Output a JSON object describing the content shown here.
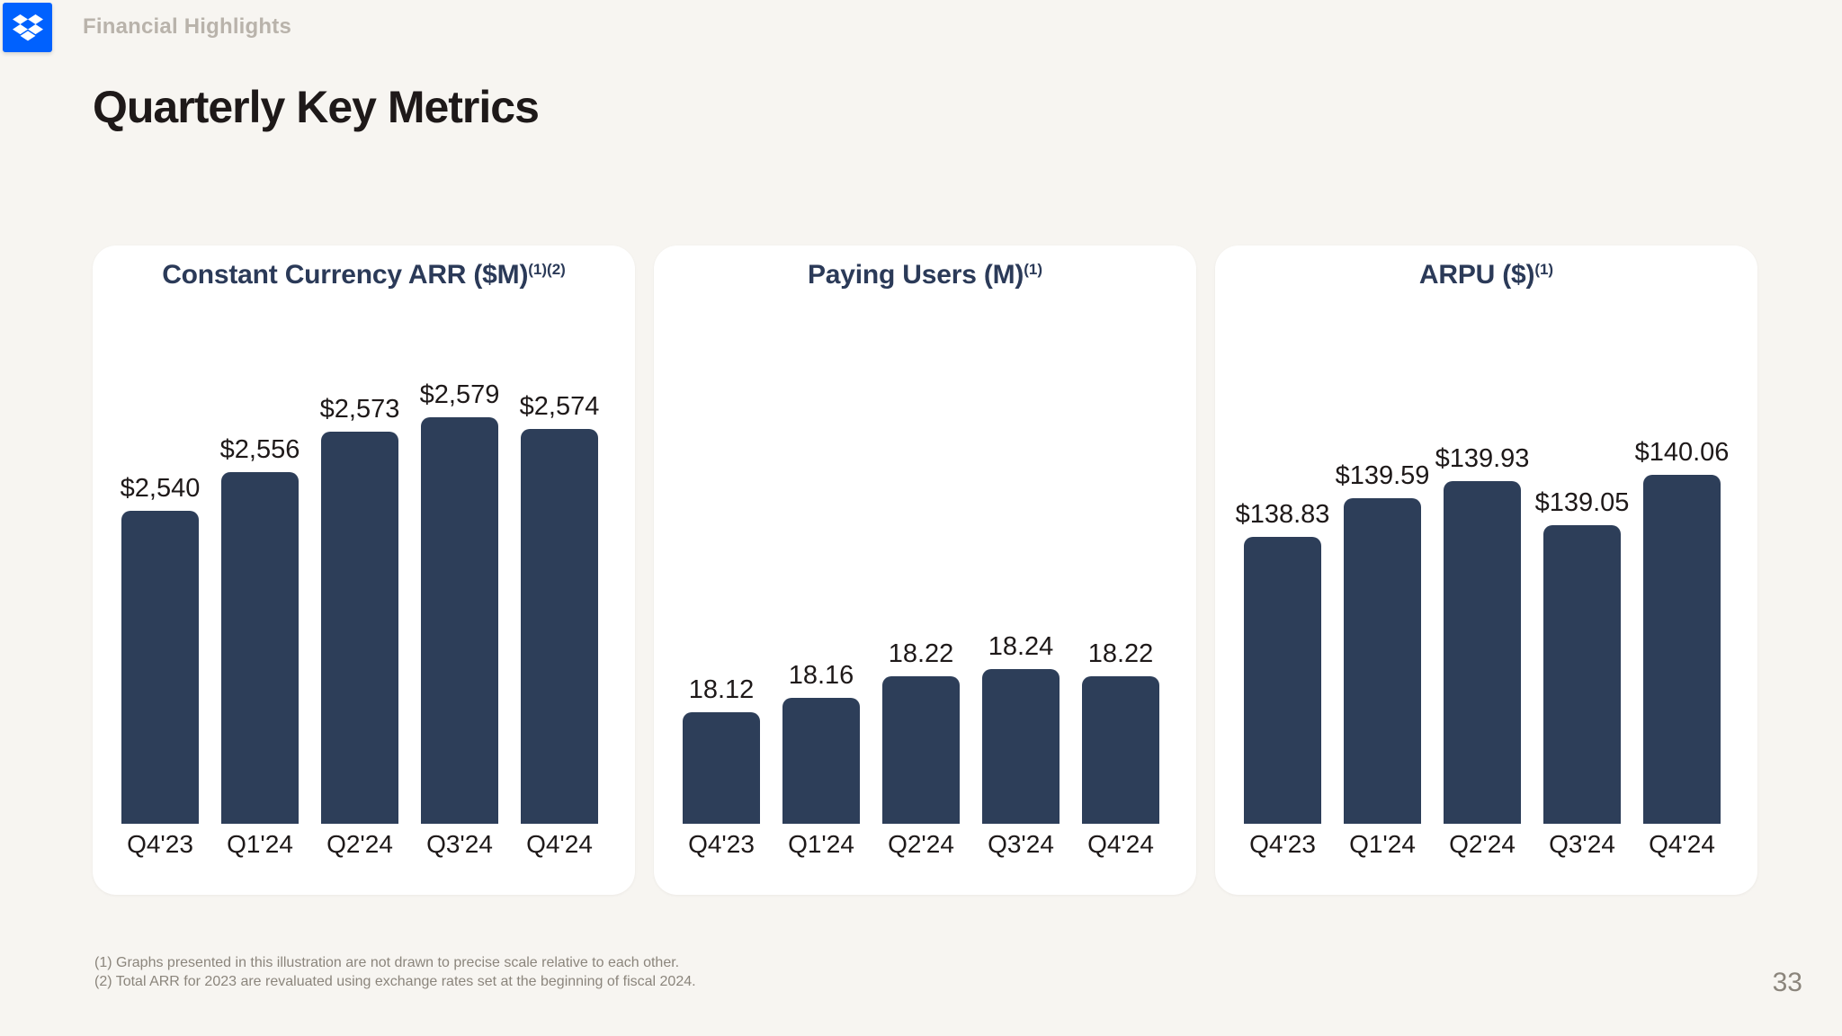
{
  "header": {
    "section_label": "Financial Highlights"
  },
  "page_title": "Quarterly Key Metrics",
  "colors": {
    "background": "#f7f5f1",
    "card": "#ffffff",
    "bar": "#2d3e59",
    "chart_title": "#2b3a58",
    "title_text": "#1e1919",
    "muted_text": "#8b857c",
    "header_label": "#b9b3ab",
    "dropbox_blue": "#0061fe"
  },
  "icons": {
    "logo": "dropbox-icon"
  },
  "chart_data": [
    {
      "type": "bar",
      "title": "Constant Currency ARR ($M)",
      "title_superscript": "(1)(2)",
      "categories": [
        "Q4'23",
        "Q1'24",
        "Q2'24",
        "Q3'24",
        "Q4'24"
      ],
      "values": [
        2540,
        2556,
        2573,
        2579,
        2574
      ],
      "value_labels": [
        "$2,540",
        "$2,556",
        "$2,573",
        "$2,579",
        "$2,574"
      ],
      "ylim": [
        2410,
        2610
      ],
      "grid": false,
      "legend": false
    },
    {
      "type": "bar",
      "title": "Paying Users (M)",
      "title_superscript": "(1)",
      "categories": [
        "Q4'23",
        "Q1'24",
        "Q2'24",
        "Q3'24",
        "Q4'24"
      ],
      "values": [
        18.12,
        18.16,
        18.22,
        18.24,
        18.22
      ],
      "value_labels": [
        "18.12",
        "18.16",
        "18.22",
        "18.24",
        "18.22"
      ],
      "ylim": [
        17.81,
        19.15
      ],
      "grid": false,
      "legend": false
    },
    {
      "type": "bar",
      "title": "ARPU ($)",
      "title_superscript": "(1)",
      "categories": [
        "Q4'23",
        "Q1'24",
        "Q2'24",
        "Q3'24",
        "Q4'24"
      ],
      "values": [
        138.83,
        139.59,
        139.93,
        139.05,
        140.06
      ],
      "value_labels": [
        "$138.83",
        "$139.59",
        "$139.93",
        "$139.05",
        "$140.06"
      ],
      "ylim": [
        133.1,
        142.7
      ],
      "grid": false,
      "legend": false
    }
  ],
  "footnotes": [
    "(1) Graphs presented in this illustration are not drawn to precise scale relative to each other.",
    "(2) Total ARR for 2023 are revaluated using exchange rates set at the beginning of fiscal 2024."
  ],
  "page_number": "33"
}
